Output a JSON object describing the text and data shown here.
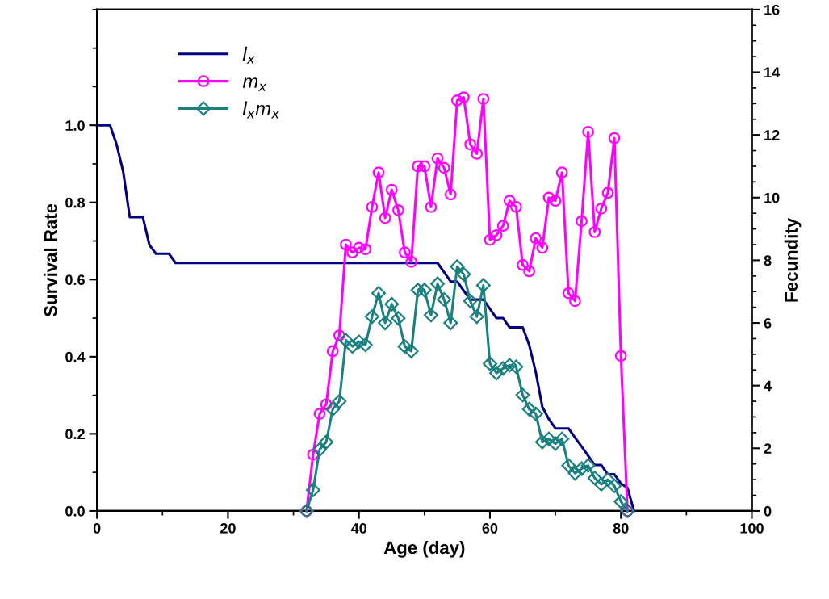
{
  "chart_data": {
    "type": "line",
    "xlabel": "Age (day)",
    "ylabel": "Survival Rate",
    "y2label": "Fecundity",
    "xlim": [
      0,
      100
    ],
    "xticks": [
      0,
      20,
      40,
      60,
      80,
      100
    ],
    "ylim": [
      0,
      1.3
    ],
    "yticks": [
      {
        "value": 0,
        "label": "0.0"
      },
      {
        "value": 0.2,
        "label": "0.2"
      },
      {
        "value": 0.4,
        "label": "0.4"
      },
      {
        "value": 0.6,
        "label": "0.6"
      },
      {
        "value": 0.8,
        "label": "0.8"
      },
      {
        "value": 1.0,
        "label": "1.0"
      }
    ],
    "y2lim": [
      0,
      16
    ],
    "y2ticks": [
      0,
      2,
      4,
      6,
      8,
      10,
      12,
      14,
      16
    ],
    "grid": false,
    "legend": "top left",
    "series": [
      {
        "name": "l$_{x}$",
        "color": "#000080",
        "marker": "none",
        "x": [
          0,
          1,
          2,
          3,
          4,
          5,
          6,
          7,
          8,
          9,
          10,
          11,
          12,
          52,
          53,
          54,
          55,
          56,
          57,
          58,
          59,
          60,
          61,
          62,
          63,
          64,
          65,
          66,
          67,
          68,
          69,
          70,
          71,
          72,
          73,
          74,
          75,
          76,
          77,
          78,
          79,
          80,
          81,
          82
        ],
        "values": [
          1.0,
          1.0,
          1.0,
          0.95,
          0.88,
          0.762,
          0.762,
          0.762,
          0.69,
          0.667,
          0.667,
          0.667,
          0.643,
          0.643,
          0.619,
          0.595,
          0.595,
          0.571,
          0.548,
          0.548,
          0.548,
          0.524,
          0.5,
          0.5,
          0.476,
          0.476,
          0.476,
          0.43,
          0.36,
          0.27,
          0.238,
          0.214,
          0.214,
          0.214,
          0.19,
          0.167,
          0.143,
          0.119,
          0.119,
          0.095,
          0.095,
          0.071,
          0.06,
          0
        ]
      },
      {
        "name": "m$_{x}$",
        "color": "#ff00ff",
        "marker": "circle",
        "axis": "y2",
        "x": [
          32,
          33,
          34,
          35,
          36,
          37,
          38,
          39,
          40,
          41,
          42,
          43,
          44,
          45,
          46,
          47,
          48,
          49,
          50,
          51,
          52,
          53,
          54,
          55,
          56,
          57,
          58,
          59,
          60,
          61,
          62,
          63,
          64,
          65,
          66,
          67,
          68,
          69,
          70,
          71,
          72,
          73,
          74,
          75,
          76,
          77,
          78,
          79,
          80,
          81
        ],
        "values": [
          0,
          1.8,
          3.1,
          3.4,
          5.1,
          5.6,
          8.5,
          8.25,
          8.4,
          8.35,
          9.7,
          10.8,
          9.35,
          10.25,
          9.6,
          8.25,
          7.95,
          11.0,
          11.0,
          9.7,
          11.25,
          10.95,
          10.1,
          13.1,
          13.2,
          11.7,
          11.4,
          13.15,
          8.65,
          8.8,
          9.1,
          9.9,
          9.7,
          7.85,
          7.65,
          8.7,
          8.4,
          10.0,
          9.9,
          10.8,
          6.95,
          6.7,
          9.25,
          12.1,
          8.9,
          9.65,
          10.15,
          11.9,
          4.95,
          0
        ]
      },
      {
        "name": "l$_{x}$m$_{x}$",
        "color": "#1a8080",
        "marker": "diamond",
        "axis": "y2",
        "x": [
          32,
          33,
          34,
          35,
          36,
          37,
          38,
          39,
          40,
          41,
          42,
          43,
          44,
          45,
          46,
          47,
          48,
          49,
          50,
          51,
          52,
          53,
          54,
          55,
          56,
          57,
          58,
          59,
          60,
          61,
          62,
          63,
          64,
          65,
          66,
          67,
          68,
          69,
          70,
          71,
          72,
          73,
          74,
          75,
          76,
          77,
          78,
          79,
          80,
          81
        ],
        "values": [
          0,
          0.67,
          1.96,
          2.2,
          3.25,
          3.5,
          5.45,
          5.25,
          5.4,
          5.3,
          6.2,
          6.95,
          6.0,
          6.6,
          6.15,
          5.25,
          5.1,
          7.05,
          7.05,
          6.25,
          7.25,
          6.75,
          6.0,
          7.8,
          7.55,
          6.7,
          6.2,
          7.2,
          4.7,
          4.4,
          4.55,
          4.65,
          4.6,
          3.7,
          3.25,
          3.1,
          2.2,
          2.3,
          2.15,
          2.3,
          1.45,
          1.2,
          1.35,
          1.45,
          1.05,
          0.85,
          1.0,
          0.8,
          0.3,
          0
        ]
      }
    ]
  }
}
